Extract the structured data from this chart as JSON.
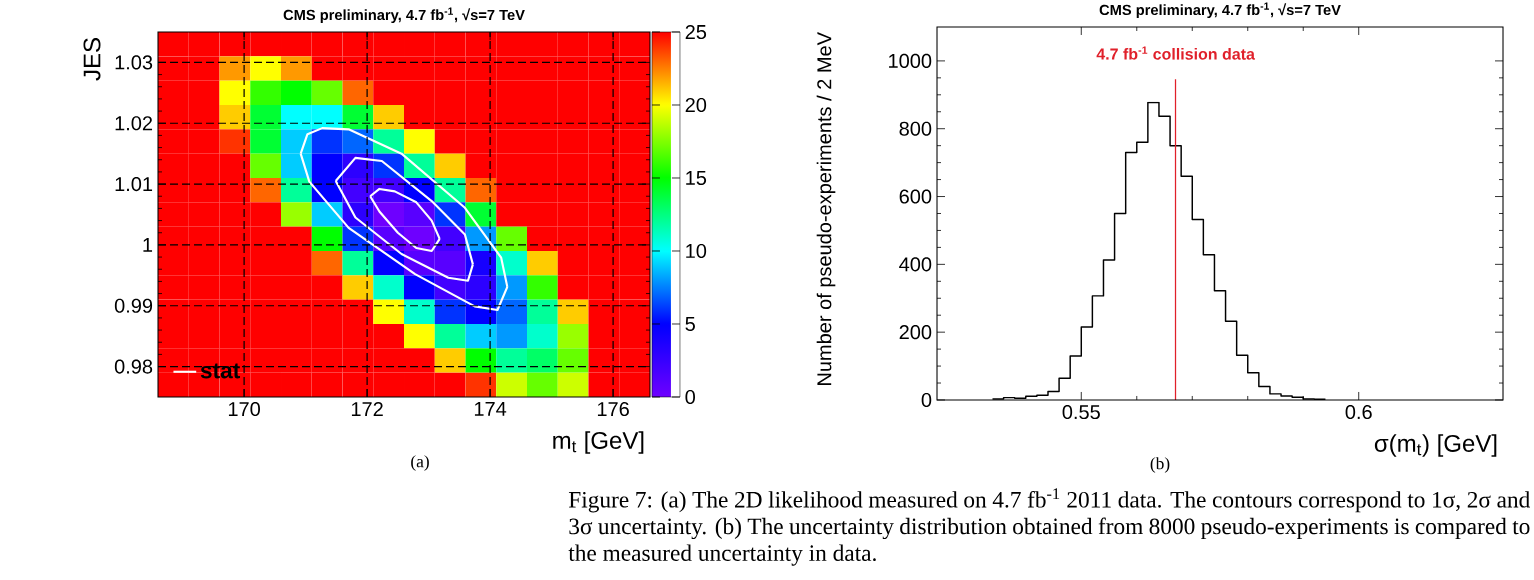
{
  "chart_data": [
    {
      "type": "heatmap",
      "title": "CMS preliminary, 4.7 fb$^{-1}$, √s=7 TeV",
      "xlabel": "m$_{t}$ [GeV]",
      "ylabel": "JES",
      "x": [
        168.85,
        169.35,
        169.85,
        170.35,
        170.85,
        171.35,
        171.85,
        172.35,
        172.85,
        173.35,
        173.85,
        174.35,
        174.85,
        175.35,
        175.85,
        176.35
      ],
      "cells": [
        [
          25,
          25,
          25,
          25,
          25,
          25,
          25,
          25,
          25,
          25,
          25,
          25,
          25,
          25,
          25,
          25
        ],
        [
          25,
          25,
          22,
          20,
          22,
          25,
          25,
          25,
          25,
          25,
          25,
          25,
          25,
          25,
          25,
          25
        ],
        [
          25,
          25,
          20,
          16,
          15,
          17,
          23,
          25,
          25,
          25,
          25,
          25,
          25,
          25,
          25,
          25
        ],
        [
          25,
          25,
          21,
          14,
          10,
          10,
          14,
          21,
          25,
          25,
          25,
          25,
          25,
          25,
          25,
          25
        ],
        [
          25,
          25,
          24,
          14,
          9,
          6,
          7,
          12,
          20,
          25,
          25,
          25,
          25,
          25,
          25,
          25
        ],
        [
          25,
          25,
          25,
          17,
          9,
          5,
          3,
          6,
          12,
          21,
          25,
          25,
          25,
          25,
          25,
          25
        ],
        [
          25,
          25,
          25,
          23,
          12,
          5,
          2,
          2,
          5,
          12,
          23,
          25,
          25,
          25,
          25,
          25
        ],
        [
          25,
          25,
          25,
          25,
          18,
          9,
          3,
          0,
          1,
          6,
          14,
          25,
          25,
          25,
          25,
          25
        ],
        [
          25,
          25,
          25,
          25,
          25,
          15,
          6,
          1,
          0,
          2,
          8,
          17,
          25,
          25,
          25,
          25
        ],
        [
          25,
          25,
          25,
          25,
          25,
          23,
          12,
          5,
          1,
          1,
          4,
          11,
          21,
          25,
          25,
          25
        ],
        [
          25,
          25,
          25,
          25,
          25,
          25,
          21,
          11,
          5,
          2,
          3,
          8,
          16,
          25,
          25,
          25
        ],
        [
          25,
          25,
          25,
          25,
          25,
          25,
          25,
          20,
          11,
          6,
          5,
          7,
          12,
          21,
          25,
          25
        ],
        [
          25,
          25,
          25,
          25,
          25,
          25,
          25,
          25,
          20,
          12,
          9,
          8,
          11,
          18,
          25,
          25
        ],
        [
          25,
          25,
          25,
          25,
          25,
          25,
          25,
          25,
          25,
          21,
          15,
          12,
          13,
          17,
          25,
          25
        ],
        [
          25,
          25,
          25,
          25,
          25,
          25,
          25,
          25,
          25,
          25,
          24,
          19,
          17,
          19,
          25,
          25
        ]
      ],
      "clim": [
        0,
        25
      ],
      "cticks": [
        0,
        5,
        10,
        15,
        20,
        25
      ],
      "xlim": [
        168.6,
        176.6
      ],
      "ylim": [
        0.975,
        1.035
      ],
      "xticks": [
        170,
        172,
        174,
        176
      ],
      "yticks": [
        0.98,
        0.99,
        1,
        1.01,
        1.02,
        1.03
      ],
      "grid": true,
      "legend": "bottom left",
      "series": [
        {
          "type": "line",
          "name": "stat",
          "color": "#ffffff",
          "x": [
            172.05,
            172.2,
            172.45,
            172.8,
            173.05,
            173.18
          ],
          "values": [
            1.008,
            1.0092,
            1.0088,
            1.007,
            1.004,
            1.001
          ]
        },
        {
          "type": "line",
          "color": "#ffffff",
          "x": [
            172.05,
            172.2,
            172.5,
            172.8,
            173.05,
            173.18
          ],
          "values": [
            1.008,
            1.0055,
            1.002,
            0.9995,
            0.999,
            1.001
          ]
        },
        {
          "type": "line",
          "color": "#ffffff",
          "x": [
            171.49,
            171.81,
            172.24,
            173.05,
            173.59,
            173.72
          ],
          "values": [
            1.0105,
            1.0143,
            1.0138,
            1.0072,
            1.0017,
            0.9968
          ]
        },
        {
          "type": "line",
          "color": "#ffffff",
          "x": [
            171.49,
            171.81,
            172.56,
            173.32,
            173.64,
            173.72
          ],
          "values": [
            1.0105,
            1.0045,
            0.9985,
            0.9946,
            0.9941,
            0.9968
          ]
        },
        {
          "type": "line",
          "color": "#ffffff",
          "x": [
            170.92,
            171.03,
            171.27,
            171.7,
            172.56,
            173.59,
            174.18,
            174.28
          ],
          "values": [
            1.015,
            1.0182,
            1.0192,
            1.019,
            1.015,
            1.0061,
            0.9979,
            0.9931
          ]
        },
        {
          "type": "line",
          "color": "#ffffff",
          "x": [
            170.92,
            171.06,
            171.7,
            172.78,
            173.75,
            174.12,
            174.28
          ],
          "values": [
            1.015,
            1.0104,
            1.0028,
            0.9952,
            0.9899,
            0.9893,
            0.9931
          ]
        }
      ],
      "annotations": [
        "(a)"
      ]
    },
    {
      "type": "histogram",
      "title": "CMS preliminary, 4.7 fb$^{-1}$, √s=7 TeV",
      "xlabel": "σ(m$_{t}$) [GeV]",
      "ylabel": "Number of pseudo-experiments / 2 MeV",
      "bins": [
        0.534,
        0.536,
        0.538,
        0.54,
        0.542,
        0.544,
        0.546,
        0.548,
        0.55,
        0.552,
        0.554,
        0.556,
        0.558,
        0.56,
        0.562,
        0.564,
        0.566,
        0.568,
        0.57,
        0.572,
        0.574,
        0.576,
        0.578,
        0.58,
        0.582,
        0.584,
        0.586,
        0.588,
        0.59,
        0.592,
        0.594
      ],
      "values": [
        3,
        7,
        5,
        11,
        14,
        25,
        64,
        130,
        215,
        307,
        413,
        550,
        730,
        760,
        877,
        837,
        750,
        660,
        532,
        428,
        322,
        232,
        132,
        80,
        40,
        18,
        12,
        8,
        3,
        2
      ],
      "color": "#000000",
      "xlim": [
        0.524,
        0.626
      ],
      "ylim": [
        0,
        1100
      ],
      "xticks": [
        0.55,
        0.6
      ],
      "yticks": [
        0,
        200,
        400,
        600,
        800,
        1000
      ],
      "ref_lines": [
        {
          "axis": "x",
          "value": 0.567,
          "label": "4.7 fb$^{-1}$ collision data",
          "color": "#e0202a"
        }
      ],
      "annotations": [
        "(b)",
        "Figure 7: (a) The 2D likelihood measured on 4.7 fb$^{-1}$ 2011 data. The contours correspond to 1σ, 2σ and 3σ uncertainty. (b) The uncertainty distribution obtained from 8000 pseudo-experiments is compared to the measured uncertainty in data."
      ]
    }
  ]
}
